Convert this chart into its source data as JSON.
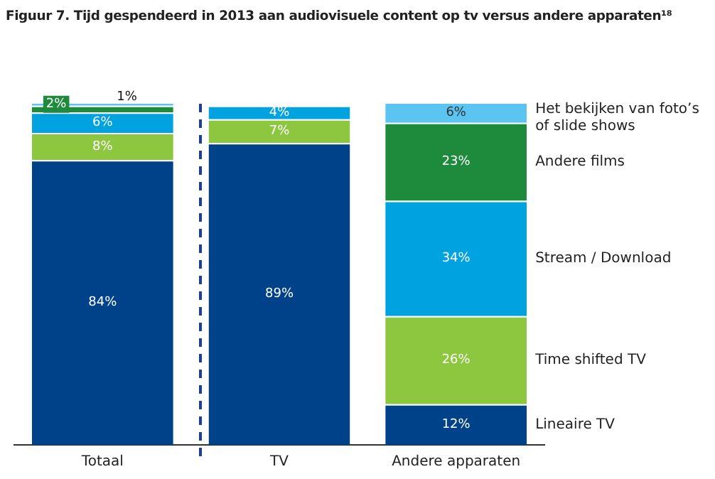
{
  "chart_data": {
    "type": "bar",
    "title": "Figuur 7. Tijd gespendeerd in 2013 aan audiovisuele content op tv versus andere apparaten¹⁸",
    "categories": [
      "Totaal",
      "TV",
      "Andere apparaten"
    ],
    "stacked": true,
    "legend": false,
    "series": [
      {
        "name": "Lineaire TV",
        "color": "#00428a",
        "values": [
          84,
          89,
          12
        ],
        "value_labels": [
          "84%",
          "89%",
          "12%"
        ]
      },
      {
        "name": "Time shifted TV",
        "color": "#8dc63f",
        "values": [
          8,
          7,
          26
        ],
        "value_labels": [
          "8%",
          "7%",
          "26%"
        ]
      },
      {
        "name": "Stream / Download",
        "color": "#00a3e0",
        "values": [
          6,
          4,
          34
        ],
        "value_labels": [
          "6%",
          "4%",
          "34%"
        ]
      },
      {
        "name": "Andere films",
        "color": "#1e8a3c",
        "values": [
          2,
          null,
          23
        ],
        "value_labels": [
          "2%",
          null,
          "23%"
        ]
      },
      {
        "name": "Het bekijken van foto’s of slide shows",
        "color": "#5bc4f1",
        "values": [
          1,
          null,
          6
        ],
        "value_labels": [
          "1%",
          null,
          "6%"
        ]
      }
    ]
  }
}
